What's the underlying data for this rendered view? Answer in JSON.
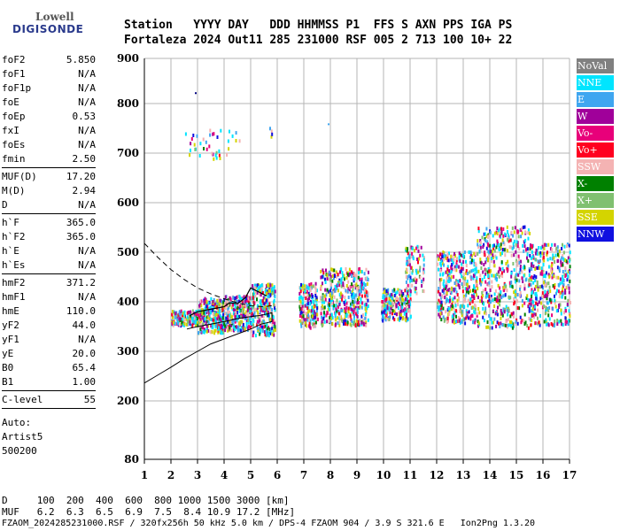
{
  "logo": {
    "line1": "Lowell",
    "line2": "DIGISONDE"
  },
  "header": {
    "labels": "Station   YYYY DAY   DDD HHMMSS P1  FFS S AXN PPS IGA PS",
    "values": "Fortaleza 2024 Out11 285 231000 RSF 005 2 713 100 10+ 22"
  },
  "params": [
    [
      [
        "foF2",
        "5.850"
      ],
      [
        "foF1",
        "N/A"
      ],
      [
        "foF1p",
        "N/A"
      ],
      [
        "foE",
        "N/A"
      ],
      [
        "foEp",
        "0.53"
      ],
      [
        "fxI",
        "N/A"
      ],
      [
        "foEs",
        "N/A"
      ],
      [
        "fmin",
        "2.50"
      ]
    ],
    [
      [
        "MUF(D)",
        "17.20"
      ],
      [
        "M(D)",
        "2.94"
      ],
      [
        "D",
        "N/A"
      ]
    ],
    [
      [
        "h`F",
        "365.0"
      ],
      [
        "h`F2",
        "365.0"
      ],
      [
        "h`E",
        "N/A"
      ],
      [
        "h`Es",
        "N/A"
      ]
    ],
    [
      [
        "hmF2",
        "371.2"
      ],
      [
        "hmF1",
        "N/A"
      ],
      [
        "hmE",
        "110.0"
      ],
      [
        "yF2",
        "44.0"
      ],
      [
        "yF1",
        "N/A"
      ],
      [
        "yE",
        "20.0"
      ],
      [
        "B0",
        "65.4"
      ],
      [
        "B1",
        "1.00"
      ]
    ],
    [
      [
        "C-level",
        "55"
      ]
    ]
  ],
  "auto": [
    "Auto:",
    "Artist5",
    "500200"
  ],
  "legend": [
    {
      "label": "NoVal",
      "color": "#808080"
    },
    {
      "label": "NNE",
      "color": "#00e5ff"
    },
    {
      "label": "E",
      "color": "#3fa6f0"
    },
    {
      "label": "W",
      "color": "#a0009a"
    },
    {
      "label": "Vo-",
      "color": "#e8007a"
    },
    {
      "label": "Vo+",
      "color": "#ff0020"
    },
    {
      "label": "SSW",
      "color": "#f4b3b3"
    },
    {
      "label": "X-",
      "color": "#008000"
    },
    {
      "label": "X+",
      "color": "#80c070"
    },
    {
      "label": "SSE",
      "color": "#d4d400"
    },
    {
      "label": "NNW",
      "color": "#1010e0"
    }
  ],
  "bottom": {
    "d_row": "D     100  200  400  600  800 1000 1500 3000 [km]",
    "muf_row": "MUF   6.2  6.3  6.5  6.9  7.5  8.4 10.9 17.2 [MHz]"
  },
  "footer": "FZAOM_2024285231000.RSF / 320fx256h 50 kHz 5.0 km / DPS-4 FZAOM 904 / 3.9 S 321.6 E   Ion2Png 1.3.20",
  "chart_data": {
    "type": "scatter",
    "x_ticks": [
      1,
      2,
      3,
      4,
      5,
      6,
      7,
      8,
      9,
      10,
      11,
      12,
      13,
      14,
      15,
      16,
      17
    ],
    "y_ticks": [
      80,
      200,
      300,
      400,
      500,
      600,
      700,
      800,
      900
    ],
    "xlim": [
      1,
      17
    ],
    "ylim": [
      80,
      900
    ],
    "grid": true,
    "clusters": [
      {
        "f": [
          2.0,
          3.0
        ],
        "h": [
          355,
          385
        ],
        "n": 160
      },
      {
        "f": [
          3.0,
          4.0
        ],
        "h": [
          340,
          410
        ],
        "n": 260
      },
      {
        "f": [
          4.0,
          5.0
        ],
        "h": [
          345,
          415
        ],
        "n": 280
      },
      {
        "f": [
          5.0,
          5.9
        ],
        "h": [
          335,
          440
        ],
        "n": 260
      },
      {
        "f": [
          6.8,
          7.5
        ],
        "h": [
          350,
          440
        ],
        "n": 180
      },
      {
        "f": [
          7.6,
          9.4
        ],
        "h": [
          355,
          470
        ],
        "n": 420
      },
      {
        "f": [
          9.9,
          11.0
        ],
        "h": [
          365,
          430
        ],
        "n": 220
      },
      {
        "f": [
          10.8,
          11.5
        ],
        "h": [
          420,
          515
        ],
        "n": 90
      },
      {
        "f": [
          12.0,
          13.5
        ],
        "h": [
          360,
          505
        ],
        "n": 380
      },
      {
        "f": [
          13.5,
          15.5
        ],
        "h": [
          350,
          555
        ],
        "n": 460
      },
      {
        "f": [
          15.5,
          17.0
        ],
        "h": [
          355,
          520
        ],
        "n": 360
      },
      {
        "f": [
          2.5,
          4.6
        ],
        "h": [
          690,
          750
        ],
        "n": 40
      },
      {
        "f": [
          5.7,
          5.8
        ],
        "h": [
          735,
          755
        ],
        "n": 4
      }
    ],
    "isolated_points": [
      [
        2.9,
        825
      ],
      [
        7.9,
        760
      ]
    ],
    "trace": [
      [
        2.7,
        372
      ],
      [
        3.0,
        380
      ],
      [
        3.5,
        385
      ],
      [
        4.0,
        390
      ],
      [
        4.2,
        398
      ],
      [
        4.5,
        396
      ],
      [
        4.8,
        408
      ],
      [
        5.0,
        428
      ],
      [
        5.3,
        420
      ],
      [
        5.6,
        412
      ]
    ],
    "profile": [
      [
        2.6,
        345
      ],
      [
        3.0,
        350
      ],
      [
        3.5,
        355
      ],
      [
        4.0,
        360
      ],
      [
        4.5,
        366
      ],
      [
        5.0,
        370
      ],
      [
        5.3,
        372
      ],
      [
        5.5,
        374
      ],
      [
        5.8,
        378
      ],
      [
        5.8,
        360
      ],
      [
        5.4,
        355
      ],
      [
        5.0,
        345
      ],
      [
        4.5,
        335
      ],
      [
        4.0,
        325
      ],
      [
        3.5,
        315
      ],
      [
        3.0,
        300
      ],
      [
        2.5,
        285
      ],
      [
        2.0,
        268
      ],
      [
        1.5,
        252
      ],
      [
        1.0,
        236
      ]
    ],
    "dashed_curve": [
      [
        1.0,
        518
      ],
      [
        1.5,
        490
      ],
      [
        2.0,
        465
      ],
      [
        2.5,
        445
      ],
      [
        3.0,
        428
      ],
      [
        3.5,
        416
      ],
      [
        4.0,
        406
      ],
      [
        4.5,
        398
      ],
      [
        5.0,
        392
      ],
      [
        5.5,
        390
      ],
      [
        5.9,
        393
      ]
    ]
  }
}
